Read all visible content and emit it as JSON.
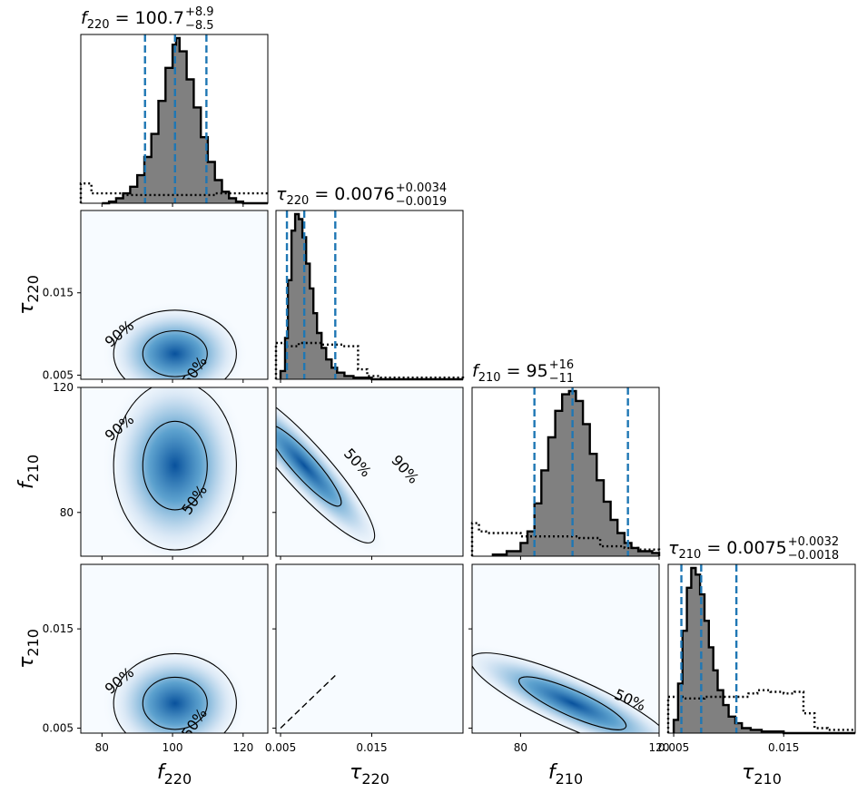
{
  "chart_data": {
    "type": "corner",
    "parameters": [
      {
        "id": "f220",
        "symbol": "f",
        "sub": "220",
        "median": "100.7",
        "plus": "+8.9",
        "minus": "−8.5",
        "range": [
          74,
          127
        ],
        "ticks": [
          80,
          100,
          120
        ],
        "tick_labels": [
          "80",
          "100",
          "120"
        ],
        "quantiles": [
          92.2,
          100.7,
          109.6
        ],
        "posterior_bins": [
          [
            80,
            0.0
          ],
          [
            82,
            0.01
          ],
          [
            84,
            0.03
          ],
          [
            86,
            0.06
          ],
          [
            88,
            0.1
          ],
          [
            90,
            0.17
          ],
          [
            92,
            0.28
          ],
          [
            94,
            0.42
          ],
          [
            96,
            0.62
          ],
          [
            98,
            0.82
          ],
          [
            100,
            0.96
          ],
          [
            101,
            1.0
          ],
          [
            102,
            0.92
          ],
          [
            104,
            0.75
          ],
          [
            106,
            0.58
          ],
          [
            108,
            0.4
          ],
          [
            110,
            0.25
          ],
          [
            112,
            0.14
          ],
          [
            114,
            0.07
          ],
          [
            116,
            0.03
          ],
          [
            118,
            0.01
          ],
          [
            120,
            0.0
          ]
        ],
        "prior_bins": [
          [
            74,
            0.12
          ],
          [
            77,
            0.06
          ],
          [
            86,
            0.05
          ],
          [
            112,
            0.06
          ],
          [
            127,
            0.06
          ]
        ]
      },
      {
        "id": "tau220",
        "symbol": "τ",
        "sub": "220",
        "median": "0.0076",
        "plus": "+0.0034",
        "minus": "−0.0019",
        "range": [
          0.0045,
          0.025
        ],
        "ticks": [
          0.005,
          0.015
        ],
        "tick_labels": [
          "0.005",
          "0.015"
        ],
        "quantiles": [
          0.0057,
          0.0076,
          0.011
        ],
        "posterior_bins": [
          [
            0.005,
            0.05
          ],
          [
            0.0055,
            0.25
          ],
          [
            0.0058,
            0.6
          ],
          [
            0.0062,
            0.9
          ],
          [
            0.0066,
            1.0
          ],
          [
            0.007,
            0.97
          ],
          [
            0.0074,
            0.86
          ],
          [
            0.0078,
            0.7
          ],
          [
            0.0082,
            0.55
          ],
          [
            0.0086,
            0.4
          ],
          [
            0.009,
            0.28
          ],
          [
            0.0095,
            0.19
          ],
          [
            0.01,
            0.12
          ],
          [
            0.0106,
            0.07
          ],
          [
            0.0112,
            0.04
          ],
          [
            0.012,
            0.02
          ],
          [
            0.013,
            0.01
          ],
          [
            0.015,
            0.0
          ]
        ],
        "prior_bins": [
          [
            0.0045,
            0.22
          ],
          [
            0.0055,
            0.2
          ],
          [
            0.007,
            0.22
          ],
          [
            0.0095,
            0.21
          ],
          [
            0.0118,
            0.2
          ],
          [
            0.013,
            0.2
          ],
          [
            0.0135,
            0.06
          ],
          [
            0.0145,
            0.02
          ],
          [
            0.016,
            0.01
          ],
          [
            0.025,
            0.0
          ]
        ]
      },
      {
        "id": "f210",
        "symbol": "f",
        "sub": "210",
        "median": "95",
        "plus": "+16",
        "minus": "−11",
        "range": [
          66,
          120
        ],
        "ticks": [
          80,
          120
        ],
        "tick_labels": [
          "80",
          "120"
        ],
        "quantiles": [
          84,
          95,
          111
        ],
        "posterior_bins": [
          [
            72,
            0.01
          ],
          [
            76,
            0.03
          ],
          [
            80,
            0.08
          ],
          [
            82,
            0.15
          ],
          [
            84,
            0.32
          ],
          [
            86,
            0.52
          ],
          [
            88,
            0.72
          ],
          [
            90,
            0.88
          ],
          [
            92,
            0.98
          ],
          [
            94,
            1.0
          ],
          [
            96,
            0.94
          ],
          [
            98,
            0.8
          ],
          [
            100,
            0.62
          ],
          [
            102,
            0.46
          ],
          [
            104,
            0.33
          ],
          [
            106,
            0.22
          ],
          [
            108,
            0.14
          ],
          [
            110,
            0.08
          ],
          [
            112,
            0.05
          ],
          [
            114,
            0.03
          ],
          [
            118,
            0.02
          ],
          [
            120,
            0.0
          ]
        ],
        "prior_bins": [
          [
            66,
            0.2
          ],
          [
            68,
            0.15
          ],
          [
            70,
            0.14
          ],
          [
            80,
            0.12
          ],
          [
            97,
            0.11
          ],
          [
            103,
            0.06
          ],
          [
            110,
            0.05
          ],
          [
            114,
            0.04
          ],
          [
            120,
            0.03
          ]
        ]
      },
      {
        "id": "tau210",
        "symbol": "τ",
        "sub": "210",
        "median": "0.0075",
        "plus": "+0.0032",
        "minus": "−0.0018",
        "range": [
          0.0045,
          0.0215
        ],
        "ticks": [
          0.005,
          0.015
        ],
        "tick_labels": [
          "0.005",
          "0.015"
        ],
        "quantiles": [
          0.0057,
          0.0075,
          0.0107
        ],
        "posterior_bins": [
          [
            0.005,
            0.08
          ],
          [
            0.0054,
            0.3
          ],
          [
            0.0058,
            0.62
          ],
          [
            0.0062,
            0.88
          ],
          [
            0.0066,
            1.0
          ],
          [
            0.007,
            0.96
          ],
          [
            0.0074,
            0.84
          ],
          [
            0.0078,
            0.68
          ],
          [
            0.0082,
            0.52
          ],
          [
            0.0086,
            0.38
          ],
          [
            0.009,
            0.26
          ],
          [
            0.0095,
            0.17
          ],
          [
            0.01,
            0.1
          ],
          [
            0.0106,
            0.06
          ],
          [
            0.0112,
            0.03
          ],
          [
            0.012,
            0.02
          ],
          [
            0.013,
            0.01
          ],
          [
            0.015,
            0.0
          ]
        ],
        "prior_bins": [
          [
            0.0045,
            0.22
          ],
          [
            0.006,
            0.21
          ],
          [
            0.0078,
            0.22
          ],
          [
            0.0104,
            0.22
          ],
          [
            0.0118,
            0.24
          ],
          [
            0.0126,
            0.26
          ],
          [
            0.0138,
            0.25
          ],
          [
            0.015,
            0.24
          ],
          [
            0.016,
            0.25
          ],
          [
            0.0168,
            0.12
          ],
          [
            0.0178,
            0.03
          ],
          [
            0.019,
            0.02
          ],
          [
            0.0215,
            0.02
          ]
        ]
      }
    ],
    "tick_labels_left": {
      "tau220": [
        "0.005",
        "0.015"
      ],
      "f210": [
        "80",
        "120"
      ],
      "tau210": [
        "0.005",
        "0.015"
      ]
    },
    "contour_labels": [
      "50%",
      "90%"
    ],
    "colors": {
      "posterior_fill": "#808080",
      "posterior_line": "#000000",
      "prior_line": "#000000",
      "quantile_line": "#1f77b4",
      "density_low": "#f7fbff",
      "density_high": "#08519c"
    },
    "grid": false
  }
}
